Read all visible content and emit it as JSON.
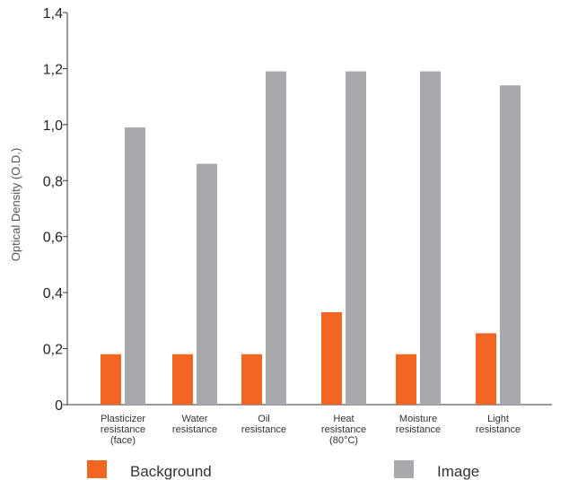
{
  "chart_data": {
    "type": "bar",
    "ylabel": "Optical Density (O.D.)",
    "xlabel": "",
    "ylim": [
      0,
      1.4
    ],
    "yticks": [
      "0",
      "0,2",
      "0,4",
      "0,6",
      "0,8",
      "1,0",
      "1,2",
      "1,4"
    ],
    "categories": [
      [
        "Plasticizer",
        "resistance",
        "(face)"
      ],
      [
        "Water",
        "resistance"
      ],
      [
        "Oil",
        "resistance"
      ],
      [
        "Heat",
        "resistance",
        "(80°C)"
      ],
      [
        "Moisture",
        "resistance"
      ],
      [
        "Light",
        "resistance"
      ]
    ],
    "series": [
      {
        "name": "Background",
        "color": "#f26522",
        "values": [
          0.18,
          0.18,
          0.18,
          0.33,
          0.18,
          0.255
        ]
      },
      {
        "name": "Image",
        "color": "#a7a9ac",
        "values": [
          0.99,
          0.86,
          1.19,
          1.19,
          1.19,
          1.14
        ]
      }
    ],
    "grid": false,
    "legend_position": "bottom"
  }
}
